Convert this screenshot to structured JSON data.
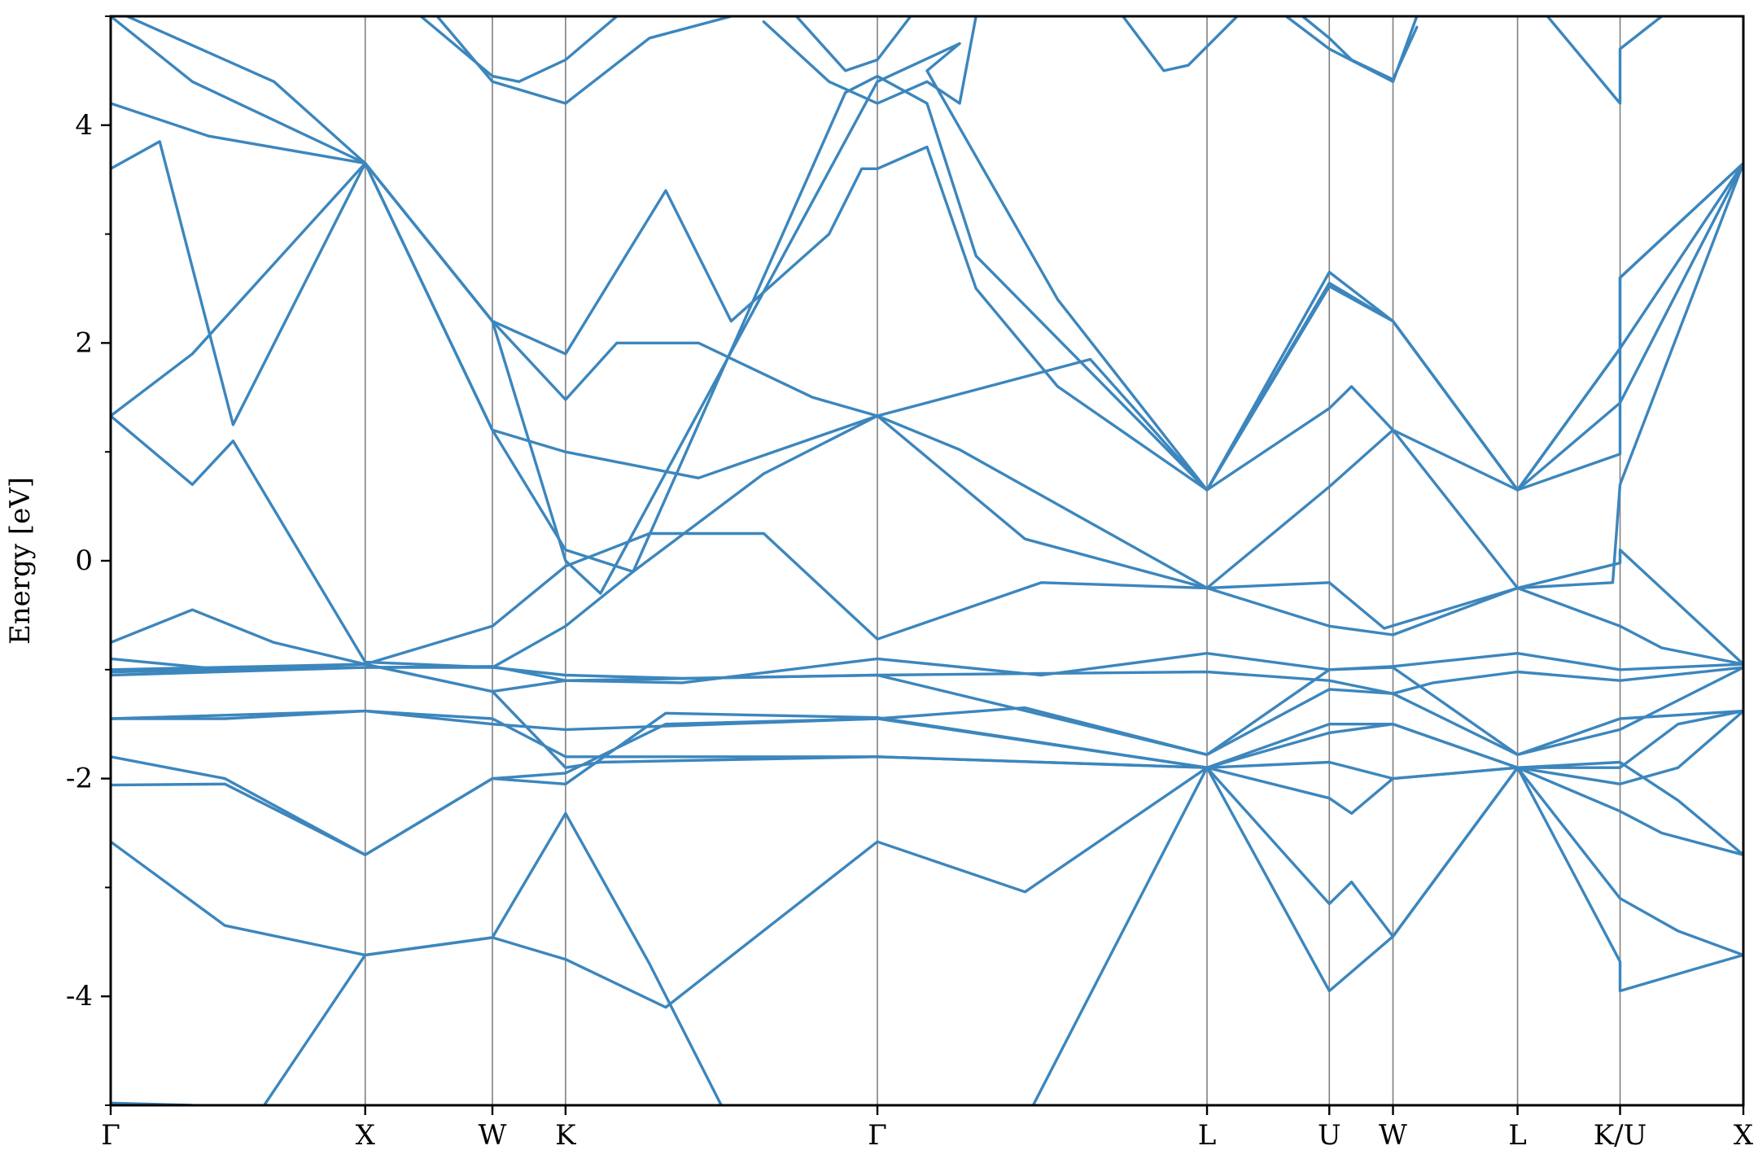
{
  "chart_data": {
    "type": "line",
    "title": "",
    "xlabel": "",
    "ylabel": "Energy [eV]",
    "ylim": [
      -5,
      5
    ],
    "yticks": [
      -4,
      -2,
      0,
      2,
      4
    ],
    "yticks_minor": [
      -5,
      -3,
      -1,
      1,
      3,
      5
    ],
    "grid": false,
    "legend": "none",
    "line_color": "#3c86bd",
    "kpoint_line_color": "#808080",
    "path_distance_range": [
      0,
      1
    ],
    "kpoints": [
      {
        "label": "Γ",
        "position": 0.0
      },
      {
        "label": "X",
        "position": 0.1559
      },
      {
        "label": "W",
        "position": 0.2338
      },
      {
        "label": "K",
        "position": 0.2786
      },
      {
        "label": "Γ",
        "position": 0.4696
      },
      {
        "label": "L",
        "position": 0.6715
      },
      {
        "label": "U",
        "position": 0.7464
      },
      {
        "label": "W",
        "position": 0.7854
      },
      {
        "label": "L",
        "position": 0.8617
      },
      {
        "label": "K/U",
        "position": 0.9245
      },
      {
        "label": "X",
        "position": 1.0
      }
    ],
    "bands": [
      [
        [
          0.0,
          -4.98
        ],
        [
          0.05,
          -5.0
        ]
      ],
      [
        [
          0.094,
          -5.0
        ],
        [
          0.1559,
          -3.62
        ],
        [
          0.2338,
          -3.46
        ],
        [
          0.2786,
          -3.66
        ],
        [
          0.34,
          -4.1
        ],
        [
          0.4696,
          -2.58
        ],
        [
          0.56,
          -3.04
        ],
        [
          0.6715,
          -1.9
        ],
        [
          0.7464,
          -3.15
        ],
        [
          0.76,
          -2.95
        ],
        [
          0.7854,
          -3.45
        ],
        [
          0.8617,
          -1.9
        ],
        [
          0.9245,
          -3.68
        ],
        [
          0.9245,
          -3.95
        ],
        [
          0.97,
          -3.75
        ],
        [
          1.0,
          -3.62
        ]
      ],
      [
        [
          0.0,
          -2.58
        ],
        [
          0.07,
          -3.35
        ],
        [
          0.1559,
          -3.62
        ],
        [
          0.2338,
          -3.46
        ],
        [
          0.2786,
          -2.32
        ],
        [
          0.33,
          -3.7
        ],
        [
          0.374,
          -5.0
        ]
      ],
      [
        [
          0.565,
          -5.0
        ],
        [
          0.6715,
          -1.9
        ],
        [
          0.7464,
          -3.95
        ],
        [
          0.7854,
          -3.45
        ],
        [
          0.8617,
          -1.9
        ],
        [
          0.9245,
          -3.1
        ],
        [
          0.96,
          -3.4
        ],
        [
          1.0,
          -3.62
        ]
      ],
      [
        [
          0.0,
          -2.06
        ],
        [
          0.07,
          -2.05
        ],
        [
          0.1559,
          -2.7
        ],
        [
          0.2338,
          -2.0
        ],
        [
          0.2786,
          -1.95
        ],
        [
          0.34,
          -1.5
        ],
        [
          0.4696,
          -1.45
        ],
        [
          0.6715,
          -1.9
        ],
        [
          0.7464,
          -2.18
        ],
        [
          0.76,
          -2.32
        ],
        [
          0.7854,
          -2.0
        ],
        [
          0.8617,
          -1.9
        ],
        [
          0.9245,
          -2.3
        ],
        [
          0.95,
          -2.5
        ],
        [
          1.0,
          -2.7
        ]
      ],
      [
        [
          0.0,
          -1.8
        ],
        [
          0.07,
          -2.0
        ],
        [
          0.1559,
          -2.7
        ],
        [
          0.2338,
          -2.0
        ],
        [
          0.2786,
          -2.05
        ],
        [
          0.34,
          -1.4
        ],
        [
          0.4696,
          -1.44
        ],
        [
          0.6715,
          -1.9
        ],
        [
          0.7464,
          -1.85
        ],
        [
          0.7854,
          -2.0
        ],
        [
          0.8617,
          -1.9
        ],
        [
          0.9245,
          -1.85
        ],
        [
          0.96,
          -2.2
        ],
        [
          1.0,
          -2.7
        ]
      ],
      [
        [
          0.0,
          -1.45
        ],
        [
          0.07,
          -1.45
        ],
        [
          0.1559,
          -1.38
        ],
        [
          0.2338,
          -1.45
        ],
        [
          0.2786,
          -1.8
        ],
        [
          0.4696,
          -1.8
        ],
        [
          0.6715,
          -1.9
        ],
        [
          0.7464,
          -1.58
        ],
        [
          0.7854,
          -1.5
        ],
        [
          0.8617,
          -1.9
        ],
        [
          0.9245,
          -2.05
        ],
        [
          0.96,
          -1.9
        ],
        [
          1.0,
          -1.38
        ]
      ],
      [
        [
          0.0,
          -1.0
        ],
        [
          0.1559,
          -0.95
        ],
        [
          0.2338,
          -1.2
        ],
        [
          0.2786,
          -1.9
        ],
        [
          0.3,
          -1.85
        ],
        [
          0.4696,
          -1.8
        ],
        [
          0.6715,
          -1.9
        ],
        [
          0.7464,
          -1.5
        ],
        [
          0.7854,
          -1.5
        ],
        [
          0.8617,
          -1.9
        ],
        [
          0.9245,
          -1.9
        ],
        [
          0.96,
          -1.5
        ],
        [
          1.0,
          -1.38
        ]
      ],
      [
        [
          0.0,
          -1.45
        ],
        [
          0.1559,
          -1.38
        ],
        [
          0.2338,
          -1.5
        ],
        [
          0.2786,
          -1.55
        ],
        [
          0.4696,
          -1.45
        ],
        [
          0.56,
          -1.35
        ],
        [
          0.6715,
          -1.78
        ],
        [
          0.7464,
          -1.18
        ],
        [
          0.7854,
          -1.22
        ],
        [
          0.8617,
          -1.78
        ],
        [
          0.9245,
          -1.45
        ],
        [
          1.0,
          -1.38
        ]
      ],
      [
        [
          0.0,
          -0.9
        ],
        [
          0.07,
          -1.0
        ],
        [
          0.1559,
          -0.95
        ],
        [
          0.2338,
          -1.2
        ],
        [
          0.2786,
          -1.1
        ],
        [
          0.4696,
          -1.05
        ],
        [
          0.6715,
          -1.78
        ],
        [
          0.7464,
          -1.0
        ],
        [
          0.7854,
          -0.98
        ],
        [
          0.8617,
          -1.78
        ],
        [
          0.9245,
          -1.55
        ],
        [
          1.0,
          -0.98
        ]
      ],
      [
        [
          0.0,
          -1.05
        ],
        [
          0.1559,
          -0.98
        ],
        [
          0.2338,
          -0.98
        ],
        [
          0.2786,
          -1.05
        ],
        [
          0.35,
          -1.08
        ],
        [
          0.4696,
          -1.05
        ],
        [
          0.6715,
          -1.02
        ],
        [
          0.7464,
          -1.1
        ],
        [
          0.7854,
          -1.22
        ],
        [
          0.81,
          -1.12
        ],
        [
          0.8617,
          -1.02
        ],
        [
          0.9245,
          -1.1
        ],
        [
          1.0,
          -0.98
        ]
      ],
      [
        [
          0.0,
          -1.02
        ],
        [
          0.1559,
          -0.98
        ],
        [
          0.2338,
          -0.97
        ],
        [
          0.2786,
          -1.1
        ],
        [
          0.35,
          -1.12
        ],
        [
          0.4696,
          -0.9
        ],
        [
          0.57,
          -1.05
        ],
        [
          0.6715,
          -0.85
        ],
        [
          0.7464,
          -1.0
        ],
        [
          0.7854,
          -0.97
        ],
        [
          0.8617,
          -0.85
        ],
        [
          0.9245,
          -1.0
        ],
        [
          1.0,
          -0.95
        ]
      ],
      [
        [
          0.0,
          -0.75
        ],
        [
          0.05,
          -0.45
        ],
        [
          0.1,
          -0.75
        ],
        [
          0.1559,
          -0.95
        ],
        [
          0.2338,
          -0.6
        ],
        [
          0.2786,
          -0.05
        ],
        [
          0.33,
          0.25
        ],
        [
          0.4,
          0.25
        ],
        [
          0.4696,
          -0.72
        ],
        [
          0.57,
          -0.2
        ],
        [
          0.6715,
          -0.25
        ],
        [
          0.7464,
          -0.6
        ],
        [
          0.7854,
          -0.68
        ],
        [
          0.8617,
          -0.25
        ],
        [
          0.9245,
          -0.6
        ],
        [
          0.95,
          -0.8
        ],
        [
          1.0,
          -0.95
        ]
      ],
      [
        [
          0.0,
          1.33
        ],
        [
          0.05,
          0.7
        ],
        [
          0.075,
          1.1
        ],
        [
          0.1559,
          -0.93
        ],
        [
          0.2338,
          -0.98
        ],
        [
          0.2786,
          -0.6
        ],
        [
          0.32,
          -0.1
        ],
        [
          0.4,
          0.8
        ],
        [
          0.4696,
          1.33
        ],
        [
          0.52,
          1.02
        ],
        [
          0.6715,
          -0.25
        ],
        [
          0.7464,
          -0.2
        ],
        [
          0.78,
          -0.62
        ],
        [
          0.8617,
          -0.25
        ],
        [
          0.9245,
          -0.02
        ],
        [
          0.9245,
          0.1
        ],
        [
          1.0,
          -0.95
        ]
      ],
      [
        [
          0.0,
          1.33
        ],
        [
          0.05,
          1.9
        ],
        [
          0.1559,
          3.65
        ],
        [
          0.2338,
          1.2
        ],
        [
          0.2786,
          1.0
        ],
        [
          0.36,
          0.76
        ],
        [
          0.4696,
          1.33
        ],
        [
          0.56,
          0.2
        ],
        [
          0.6715,
          -0.25
        ],
        [
          0.7464,
          0.68
        ],
        [
          0.7854,
          1.2
        ],
        [
          0.8617,
          -0.25
        ],
        [
          0.92,
          -0.2
        ],
        [
          0.9245,
          0.7
        ],
        [
          1.0,
          3.65
        ]
      ],
      [
        [
          0.0,
          3.6
        ],
        [
          0.03,
          3.85
        ],
        [
          0.075,
          1.25
        ],
        [
          0.1559,
          3.65
        ],
        [
          0.2338,
          2.2
        ],
        [
          0.2786,
          1.9
        ],
        [
          0.34,
          3.4
        ],
        [
          0.38,
          2.2
        ],
        [
          0.44,
          3.0
        ],
        [
          0.46,
          3.6
        ],
        [
          0.4696,
          3.6
        ],
        [
          0.5,
          3.8
        ],
        [
          0.53,
          2.5
        ],
        [
          0.58,
          1.6
        ],
        [
          0.6715,
          0.65
        ],
        [
          0.7464,
          2.52
        ],
        [
          0.7854,
          2.2
        ],
        [
          0.8617,
          0.65
        ],
        [
          0.9245,
          1.45
        ],
        [
          1.0,
          3.65
        ]
      ],
      [
        [
          0.0,
          4.2
        ],
        [
          0.06,
          3.9
        ],
        [
          0.1559,
          3.65
        ],
        [
          0.2338,
          2.2
        ],
        [
          0.2786,
          1.48
        ],
        [
          0.31,
          2.0
        ],
        [
          0.36,
          2.0
        ],
        [
          0.43,
          1.5
        ],
        [
          0.4696,
          1.33
        ],
        [
          0.6,
          1.85
        ],
        [
          0.6715,
          0.65
        ],
        [
          0.7464,
          2.65
        ],
        [
          0.7854,
          2.2
        ],
        [
          0.8617,
          0.65
        ],
        [
          0.9245,
          1.95
        ],
        [
          1.0,
          3.65
        ]
      ],
      [
        [
          0.0,
          5.0
        ],
        [
          0.05,
          4.4
        ],
        [
          0.1559,
          3.65
        ],
        [
          0.2338,
          2.2
        ],
        [
          0.2786,
          0.0
        ],
        [
          0.3,
          -0.3
        ],
        [
          0.4696,
          4.4
        ],
        [
          0.52,
          4.75
        ],
        [
          0.5,
          4.5
        ],
        [
          0.58,
          2.4
        ],
        [
          0.6715,
          0.65
        ],
        [
          0.7464,
          1.4
        ],
        [
          0.76,
          1.6
        ],
        [
          0.7854,
          1.2
        ],
        [
          0.8617,
          0.65
        ],
        [
          0.9245,
          0.98
        ],
        [
          0.9245,
          2.6
        ],
        [
          1.0,
          3.65
        ]
      ],
      [
        [
          0.01,
          5.0
        ],
        [
          0.1,
          4.4
        ],
        [
          0.1559,
          3.65
        ],
        [
          0.2338,
          1.2
        ],
        [
          0.2786,
          0.1
        ],
        [
          0.32,
          -0.1
        ],
        [
          0.45,
          4.3
        ],
        [
          0.4696,
          4.45
        ],
        [
          0.5,
          4.2
        ],
        [
          0.53,
          2.8
        ],
        [
          0.6715,
          0.65
        ],
        [
          0.7464,
          2.55
        ],
        [
          0.7854,
          2.2
        ],
        [
          0.8617,
          0.65
        ],
        [
          0.9245,
          1.95
        ],
        [
          0.9245,
          2.6
        ],
        [
          1.0,
          3.65
        ]
      ],
      [
        [
          0.2,
          5.0
        ],
        [
          0.2338,
          4.4
        ],
        [
          0.2786,
          4.2
        ],
        [
          0.33,
          4.8
        ],
        [
          0.38,
          5.0
        ]
      ],
      [
        [
          0.19,
          5.0
        ],
        [
          0.2338,
          4.45
        ],
        [
          0.25,
          4.4
        ],
        [
          0.2786,
          4.6
        ],
        [
          0.31,
          5.0
        ]
      ],
      [
        [
          0.4,
          4.95
        ],
        [
          0.44,
          4.4
        ],
        [
          0.4696,
          4.2
        ],
        [
          0.5,
          4.4
        ],
        [
          0.52,
          4.2
        ],
        [
          0.53,
          5.0
        ]
      ],
      [
        [
          0.42,
          5.0
        ],
        [
          0.45,
          4.5
        ],
        [
          0.4696,
          4.6
        ],
        [
          0.49,
          5.0
        ]
      ],
      [
        [
          0.62,
          5.0
        ],
        [
          0.645,
          4.5
        ],
        [
          0.66,
          4.55
        ],
        [
          0.69,
          5.0
        ]
      ],
      [
        [
          0.72,
          5.0
        ],
        [
          0.7464,
          4.7
        ],
        [
          0.7854,
          4.4
        ],
        [
          0.8,
          5.0
        ]
      ],
      [
        [
          0.73,
          5.0
        ],
        [
          0.7464,
          4.8
        ],
        [
          0.76,
          4.6
        ],
        [
          0.7854,
          4.42
        ],
        [
          0.8,
          4.9
        ]
      ],
      [
        [
          0.88,
          5.0
        ],
        [
          0.9245,
          4.2
        ],
        [
          0.9245,
          4.7
        ],
        [
          0.95,
          5.0
        ]
      ]
    ]
  }
}
